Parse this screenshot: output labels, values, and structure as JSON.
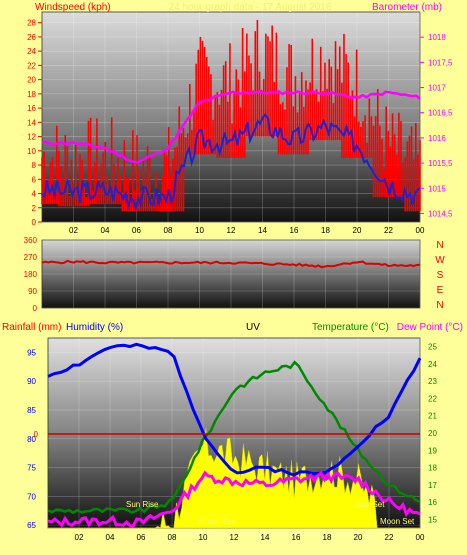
{
  "panel1": {
    "title_left": "Windspeed (kph)",
    "title_right": "Barometer (mb)",
    "header_faint": "24 hour graph data - 17 August 2016",
    "y_left_ticks": [
      "0",
      "2",
      "4",
      "6",
      "8",
      "10",
      "12",
      "14",
      "16",
      "18",
      "20",
      "22",
      "24",
      "26",
      "28"
    ],
    "y_right_ticks": [
      "1014,5",
      "1015",
      "1015,5",
      "1016",
      "1016,5",
      "1017",
      "1017,5",
      "1018"
    ],
    "colors": {
      "gust": "#ff0000",
      "avg": "#2222cc",
      "baro": "#ff00ff",
      "title_left": "#ff0000",
      "title_right": "#ff00ff"
    }
  },
  "panel2": {
    "y_ticks": [
      "0",
      "90",
      "180",
      "270",
      "360"
    ],
    "compass": [
      "N",
      "W",
      "S",
      "E",
      "N"
    ],
    "colors": {
      "dir": "#dd0000",
      "compass": "#ff0000"
    }
  },
  "panel3": {
    "title_rain": "Rainfall (mm)",
    "title_hum": "Humidity (%)",
    "title_uv": "UV",
    "title_temp": "Temperature (°C)",
    "title_dew": "Dew Point (°C)",
    "y_left_ticks": [
      "65",
      "70",
      "75",
      "80",
      "85",
      "90",
      "95"
    ],
    "rain_tick": "0",
    "y_right_ticks": [
      "15",
      "16",
      "17",
      "18",
      "19",
      "20",
      "21",
      "22",
      "23",
      "24",
      "25"
    ],
    "annotations": {
      "sunrise": "Sun Rise",
      "sunset": "Sun Set",
      "moonrise": "Moon Rise",
      "moonset": "Moon Set"
    },
    "colors": {
      "humidity": "#0000ff",
      "temperature": "#008800",
      "dewpoint": "#ff00ff",
      "uv_fill": "#ffff00",
      "rain": "#cc0000"
    }
  },
  "x_ticks": [
    "02",
    "04",
    "06",
    "08",
    "10",
    "12",
    "14",
    "16",
    "18",
    "20",
    "22",
    "00"
  ],
  "chart_data": [
    {
      "type": "line",
      "title": "24 hour graph data - 17 August 2016",
      "x": [
        "00",
        "02",
        "04",
        "06",
        "08",
        "10",
        "12",
        "14",
        "16",
        "18",
        "20",
        "22",
        "00"
      ],
      "series": [
        {
          "name": "Windspeed (kph)",
          "axis": "left",
          "values": [
            4.5,
            4.2,
            4.5,
            3.5,
            3.5,
            11.5,
            11,
            14,
            11.5,
            13.5,
            11,
            5.5,
            3.5
          ]
        },
        {
          "name": "Barometer (mb)",
          "axis": "right",
          "values": [
            1015.9,
            1015.9,
            1015.8,
            1015.5,
            1015.8,
            1016.7,
            1016.9,
            1016.9,
            1016.9,
            1016.9,
            1016.8,
            1016.9,
            1016.8
          ]
        }
      ],
      "ylim_left": [
        0,
        29.5
      ],
      "ylim_right": [
        1014.33,
        1018.5
      ],
      "ylabel": "Windspeed (kph)",
      "y2label": "Barometer (mb)"
    },
    {
      "type": "line",
      "x": [
        "00",
        "02",
        "04",
        "06",
        "08",
        "10",
        "12",
        "14",
        "16",
        "18",
        "20",
        "22",
        "00"
      ],
      "series": [
        {
          "values": [
            240,
            245,
            240,
            240,
            240,
            240,
            240,
            235,
            230,
            220,
            245,
            225,
            225
          ]
        }
      ],
      "ylim": [
        0,
        360
      ],
      "y_tick_labels": [
        "0",
        "90",
        "180",
        "270",
        "360"
      ]
    },
    {
      "type": "line",
      "x": [
        "00",
        "02",
        "04",
        "06",
        "08",
        "10",
        "12",
        "14",
        "16",
        "18",
        "20",
        "22",
        "00"
      ],
      "series": [
        {
          "name": "Humidity (%)",
          "axis": "left",
          "values": [
            91,
            93,
            96,
            96,
            95,
            81,
            74,
            75,
            74,
            74,
            79,
            84,
            94
          ]
        },
        {
          "name": "Temperature (°C)",
          "axis": "right",
          "values": [
            15.5,
            15.5,
            15.5,
            15.5,
            16,
            19.5,
            22.5,
            23.5,
            24,
            21.5,
            19,
            17,
            16
          ]
        },
        {
          "name": "Dew Point (°C)",
          "axis": "right",
          "values": [
            14.8,
            14.9,
            14.9,
            14.8,
            15.5,
            17.5,
            17.2,
            17,
            17.3,
            17.5,
            17.3,
            16,
            15.2
          ]
        },
        {
          "name": "UV",
          "axis": "none",
          "values": [
            0,
            0,
            0,
            0,
            0.3,
            3.5,
            3,
            2.5,
            2,
            2.5,
            2,
            0.2,
            0
          ]
        },
        {
          "name": "Rainfall (mm)",
          "axis": "none",
          "values": [
            0,
            0,
            0,
            0,
            0,
            0,
            0,
            0,
            0,
            0,
            0,
            0,
            0
          ]
        }
      ],
      "ylim_left": [
        64.5,
        97.5
      ],
      "ylim_right": [
        14.5,
        25.5
      ]
    }
  ]
}
